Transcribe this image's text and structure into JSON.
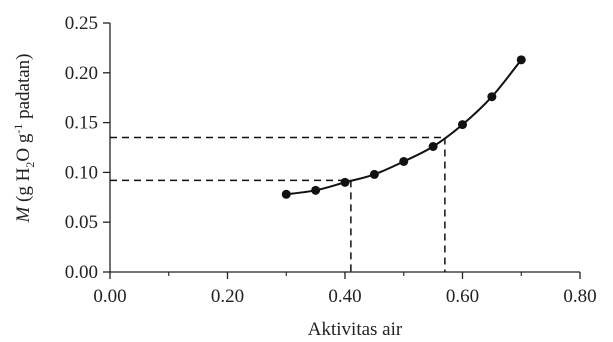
{
  "chart_data": {
    "type": "line",
    "xlabel": "Aktivitas air",
    "ylabel": {
      "italic": "M",
      "rest_before_sub": " (g H",
      "sub": "2",
      "rest_after_sub": "O g",
      "sup": "-1",
      "rest_end": " padatan)"
    },
    "xlim": [
      0.0,
      0.8
    ],
    "ylim": [
      0.0,
      0.25
    ],
    "x_ticks": [
      "0.00",
      "0.20",
      "0.40",
      "0.60",
      "0.80"
    ],
    "y_ticks": [
      "0.00",
      "0.05",
      "0.10",
      "0.15",
      "0.20",
      "0.25"
    ],
    "grid": false,
    "series": [
      {
        "x": [
          0.3,
          0.35,
          0.4,
          0.45,
          0.5,
          0.55,
          0.6,
          0.65,
          0.7
        ],
        "y": [
          0.078,
          0.082,
          0.09,
          0.098,
          0.111,
          0.126,
          0.148,
          0.176,
          0.213
        ]
      }
    ],
    "reference_lines": [
      {
        "x": 0.41,
        "y": 0.092
      },
      {
        "x": 0.57,
        "y": 0.135
      }
    ],
    "colors": {
      "line": "#111111",
      "axis": "#222222",
      "reference": "#111111"
    }
  }
}
